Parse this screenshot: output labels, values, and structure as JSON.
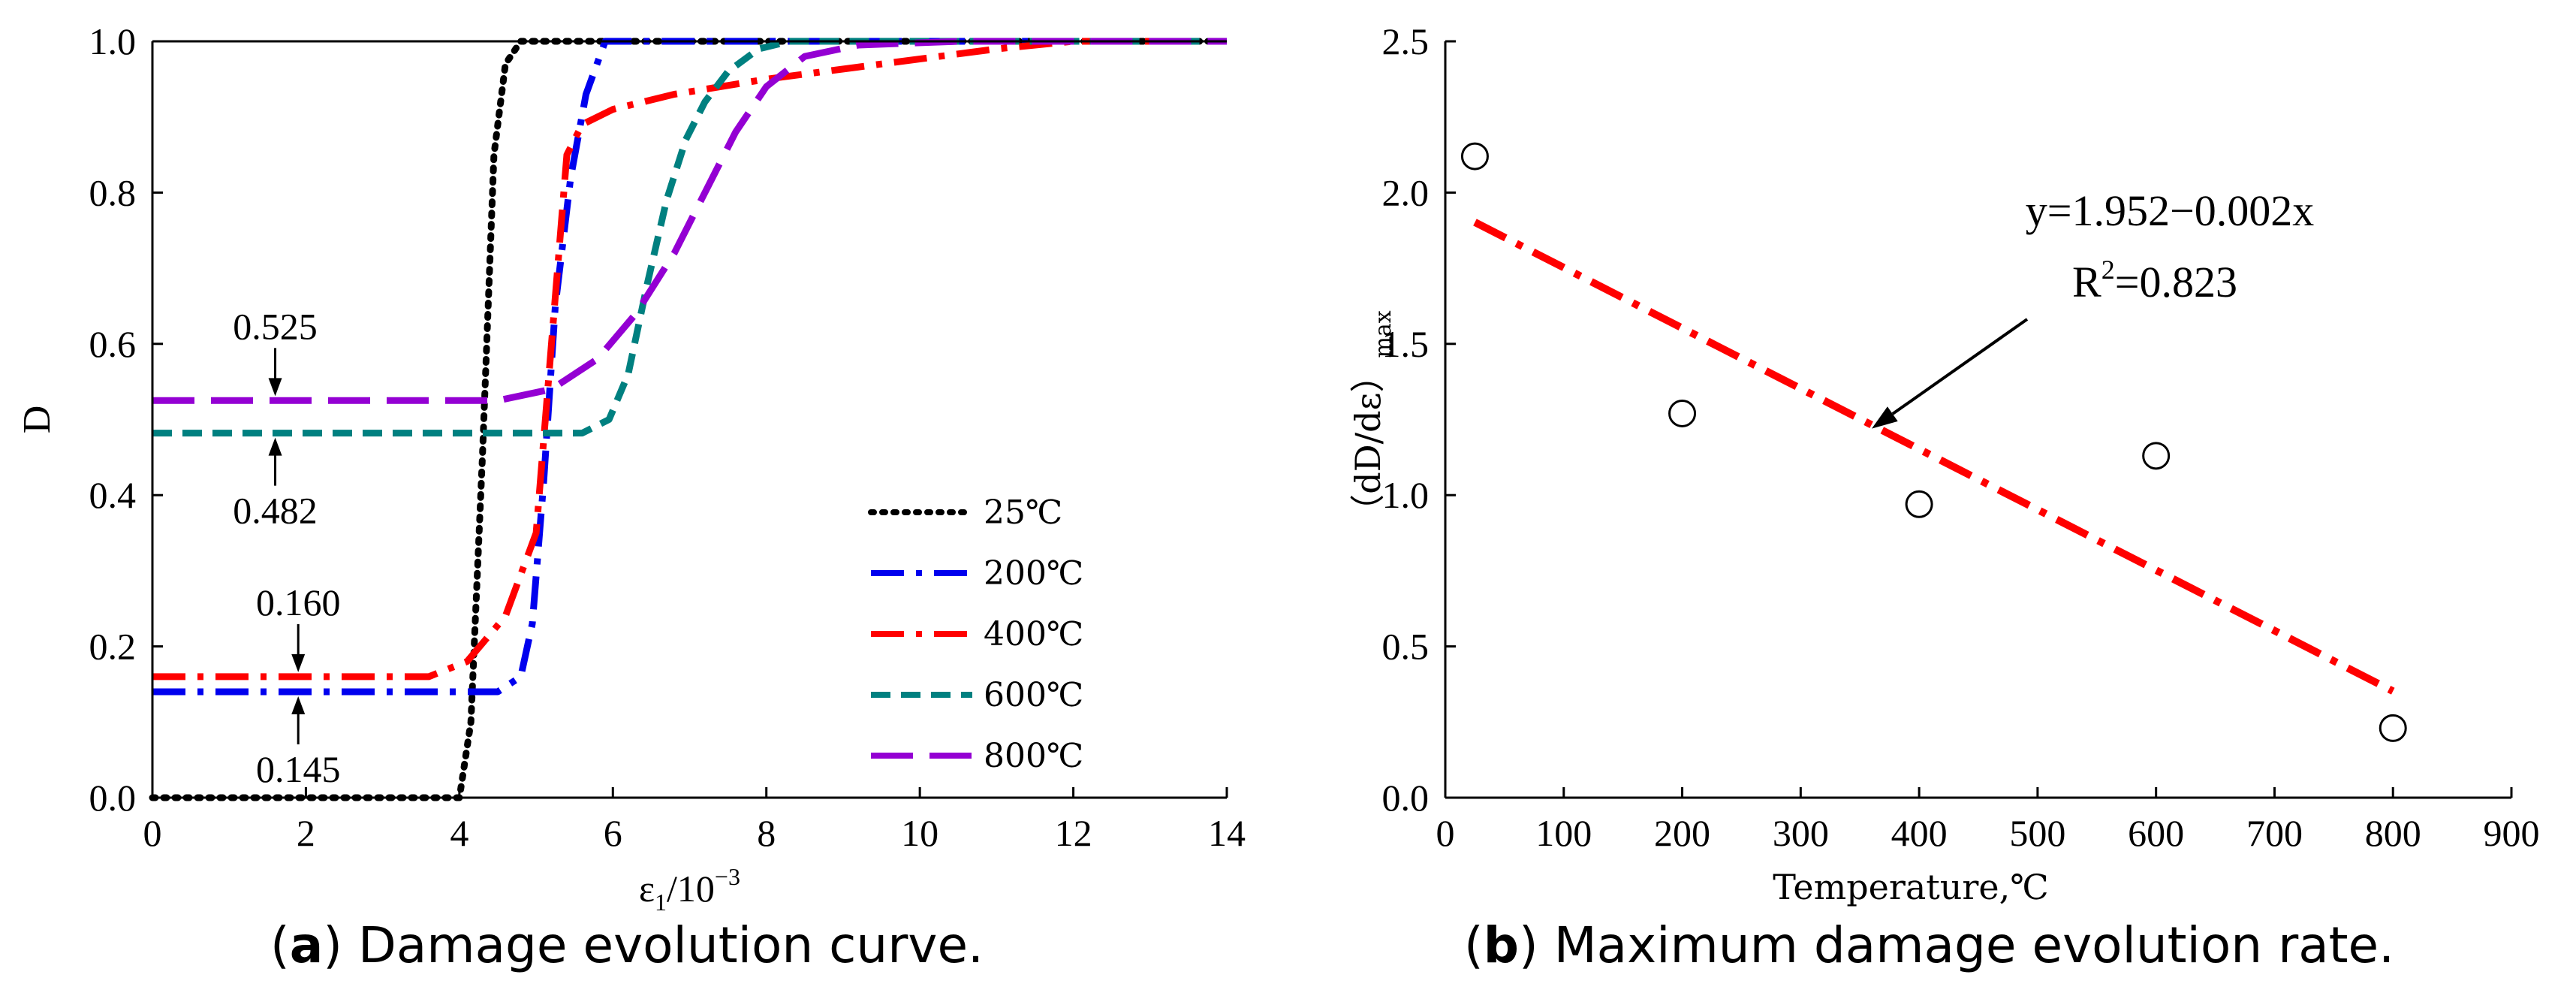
{
  "chart_data": [
    {
      "type": "line",
      "panel": "a",
      "caption_letter": "a",
      "caption_text": "Damage evolution curve.",
      "xlabel": "ε1/10−3",
      "xlabel_main": "ε",
      "xlabel_sub": "1",
      "xlabel_tail": "/10",
      "xlabel_sup": "−3",
      "ylabel": "D",
      "xlim": [
        0,
        14
      ],
      "ylim": [
        0,
        1.0
      ],
      "xticks": [
        "0",
        "2",
        "4",
        "6",
        "8",
        "10",
        "12",
        "14"
      ],
      "yticks": [
        "0.0",
        "0.2",
        "0.4",
        "0.6",
        "0.8",
        "1.0"
      ],
      "legend_position": "center-right",
      "series": [
        {
          "name": "25℃",
          "color": "#000000",
          "dash": "dot",
          "x": [
            0,
            4.0,
            4.15,
            4.3,
            4.45,
            4.6,
            4.8,
            5.5,
            14
          ],
          "y": [
            0.0,
            0.0,
            0.1,
            0.45,
            0.85,
            0.97,
            1.0,
            1.0,
            1.0
          ]
        },
        {
          "name": "200℃",
          "color": "#0000ee",
          "dash": "dashdot",
          "x": [
            0,
            4.5,
            4.8,
            4.95,
            5.1,
            5.25,
            5.45,
            5.65,
            5.9,
            14
          ],
          "y": [
            0.14,
            0.14,
            0.16,
            0.23,
            0.42,
            0.65,
            0.82,
            0.93,
            1.0,
            1.0
          ]
        },
        {
          "name": "400℃",
          "color": "#ff0000",
          "dash": "dashdot",
          "x": [
            0,
            3.6,
            4.1,
            4.6,
            5.0,
            5.2,
            5.4,
            5.6,
            6.0,
            6.8,
            8.0,
            9.5,
            11.0,
            12.0,
            14
          ],
          "y": [
            0.16,
            0.16,
            0.18,
            0.24,
            0.35,
            0.6,
            0.85,
            0.89,
            0.91,
            0.93,
            0.95,
            0.97,
            0.99,
            1.0,
            1.0
          ]
        },
        {
          "name": "600℃",
          "color": "#008080",
          "dash": "dash",
          "x": [
            0,
            5.6,
            5.95,
            6.2,
            6.45,
            6.7,
            6.95,
            7.2,
            7.5,
            7.9,
            8.3,
            14
          ],
          "y": [
            0.482,
            0.482,
            0.5,
            0.56,
            0.68,
            0.79,
            0.87,
            0.92,
            0.96,
            0.99,
            1.0,
            1.0
          ]
        },
        {
          "name": "800℃",
          "color": "#9400d3",
          "dash": "longdash",
          "x": [
            0,
            4.5,
            5.2,
            5.8,
            6.3,
            6.8,
            7.2,
            7.6,
            8.0,
            8.5,
            9.2,
            10.5,
            12.0,
            14
          ],
          "y": [
            0.525,
            0.525,
            0.54,
            0.58,
            0.64,
            0.72,
            0.8,
            0.88,
            0.94,
            0.98,
            0.995,
            1.0,
            1.0,
            1.0
          ]
        }
      ],
      "annotations": [
        {
          "text": "0.525",
          "x": 1.6,
          "y": 0.525,
          "text_side": "above"
        },
        {
          "text": "0.482",
          "x": 1.6,
          "y": 0.482,
          "text_side": "below"
        },
        {
          "text": "0.160",
          "x": 1.9,
          "y": 0.16,
          "text_side": "above"
        },
        {
          "text": "0.145",
          "x": 1.9,
          "y": 0.14,
          "text_side": "below"
        }
      ]
    },
    {
      "type": "scatter",
      "panel": "b",
      "caption_letter": "b",
      "caption_text": "Maximum damage evolution rate.",
      "xlabel": "Temperature,℃",
      "ylabel": "（dD/dε）max",
      "ylabel_main": "（dD/dε）",
      "ylabel_sub": "max",
      "xlim": [
        0,
        900
      ],
      "ylim": [
        0,
        2.5
      ],
      "xticks": [
        "0",
        "100",
        "200",
        "300",
        "400",
        "500",
        "600",
        "700",
        "800",
        "900"
      ],
      "yticks": [
        "0.0",
        "0.5",
        "1.0",
        "1.5",
        "2.0",
        "2.5"
      ],
      "points": {
        "x": [
          25,
          200,
          400,
          600,
          800
        ],
        "y": [
          2.12,
          1.27,
          0.97,
          1.13,
          0.23
        ]
      },
      "fit": {
        "color": "#ff0000",
        "x": [
          25,
          800
        ],
        "y": [
          1.902,
          0.352
        ]
      },
      "equation": "y=1.952−0.002x",
      "r2_label": "R",
      "r2_sup": "2",
      "r2_value": "=0.823",
      "arrow_target": {
        "x": 360,
        "y": 1.22
      }
    }
  ]
}
